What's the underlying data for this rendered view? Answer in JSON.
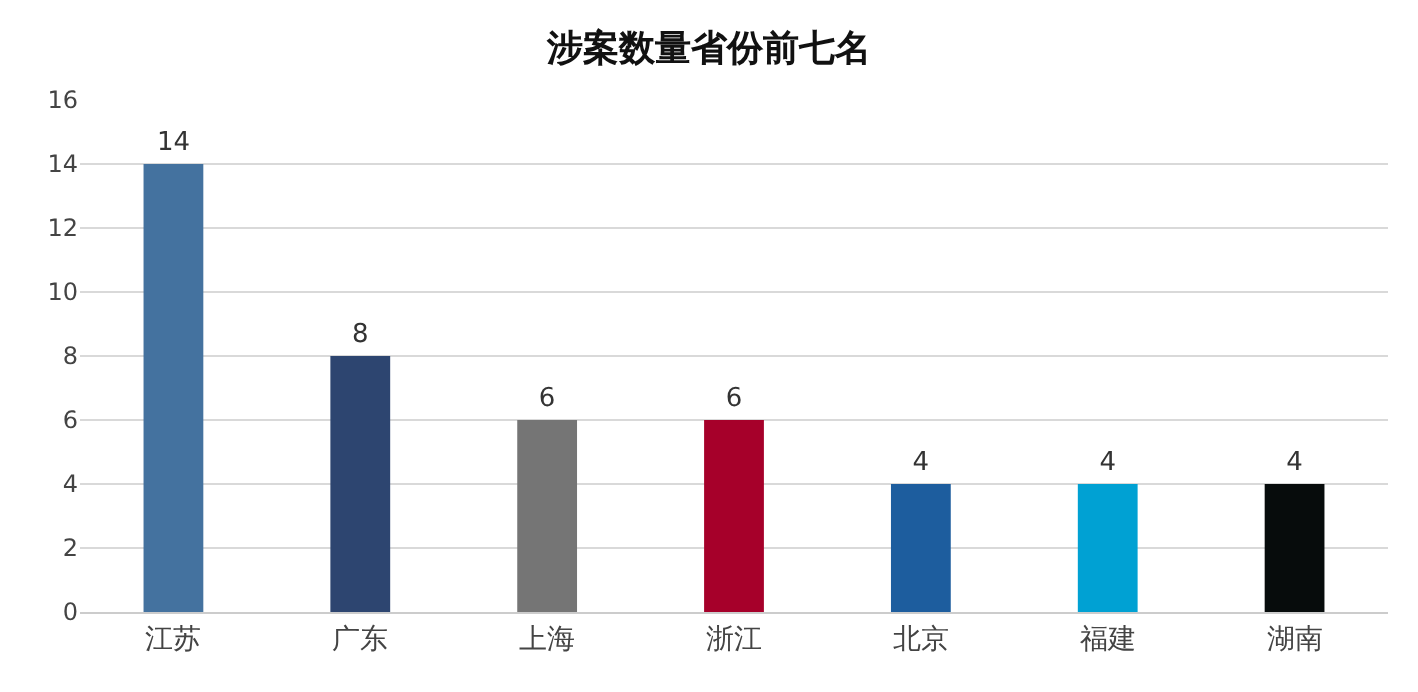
{
  "chart_data": {
    "type": "bar",
    "title": "涉案数量省份前七名",
    "categories": [
      "江苏",
      "广东",
      "上海",
      "浙江",
      "北京",
      "福建",
      "湖南"
    ],
    "values": [
      14,
      8,
      6,
      6,
      4,
      4,
      4
    ],
    "colors": [
      "#44729f",
      "#2d4570",
      "#757575",
      "#a6002a",
      "#1d5d9e",
      "#00a1d3",
      "#070c0c"
    ],
    "ylim": [
      0,
      16
    ],
    "yticks": [
      0,
      2,
      4,
      6,
      8,
      10,
      12,
      14,
      16
    ],
    "grid": "y",
    "data_labels": true,
    "legend": false
  }
}
